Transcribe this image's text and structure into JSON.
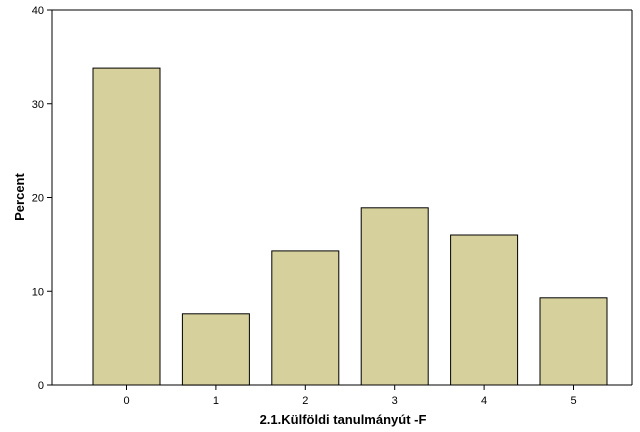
{
  "chart_data": {
    "type": "bar",
    "title": "",
    "xlabel": "2.1.Külföldi tanulmányút -F",
    "ylabel": "Percent",
    "categories": [
      "0",
      "1",
      "2",
      "3",
      "4",
      "5"
    ],
    "values": [
      33.8,
      7.6,
      14.3,
      18.9,
      16.0,
      9.3
    ],
    "ylim": [
      0,
      40
    ],
    "yticks": [
      "0",
      "10",
      "20",
      "30",
      "40"
    ],
    "grid": false,
    "legend": "none",
    "colors": {
      "bar_fill": "#d6d09c",
      "bar_stroke": "#000000",
      "axis": "#000000",
      "background": "#ffffff"
    }
  }
}
